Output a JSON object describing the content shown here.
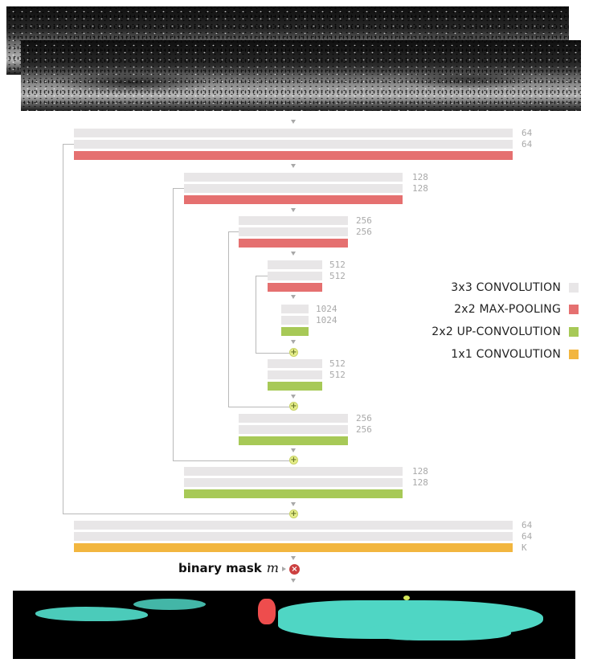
{
  "channels": {
    "enc1": [
      "64",
      "64"
    ],
    "enc2": [
      "128",
      "128"
    ],
    "enc3": [
      "256",
      "256"
    ],
    "enc4": [
      "512",
      "512"
    ],
    "bottleneck": [
      "1024",
      "1024"
    ],
    "dec4": [
      "512",
      "512"
    ],
    "dec3": [
      "256",
      "256"
    ],
    "dec2": [
      "128",
      "128"
    ],
    "dec1": [
      "64",
      "64",
      "K"
    ]
  },
  "legend": [
    {
      "label": "3x3 CONVOLUTION",
      "color": "#e8e6e7"
    },
    {
      "label": "2x2 MAX-POOLING",
      "color": "#e57070"
    },
    {
      "label": "2x2 UP-CONVOLUTION",
      "color": "#a7c957"
    },
    {
      "label": "1x1 CONVOLUTION",
      "color": "#f2b63f"
    }
  ],
  "mask": {
    "label": "binary mask",
    "variable": "m",
    "op_icon": "multiply-icon"
  },
  "icons": {
    "add": "plus-icon",
    "arrow": "arrow-down-icon"
  },
  "colors": {
    "conv": "#e8e6e7",
    "pool": "#e57070",
    "upconv": "#a7c957",
    "conv1x1": "#f2b63f",
    "skip_line": "#b9b9b9",
    "mask_cyan": "#4fd6c4",
    "mask_red": "#ee4d4d"
  }
}
